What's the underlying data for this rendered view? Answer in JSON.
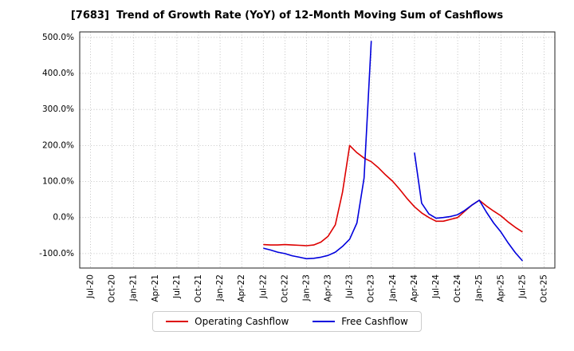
{
  "chart_data": {
    "type": "line",
    "title": "[7683]  Trend of Growth Rate (YoY) of 12-Month Moving Sum of Cashflows",
    "xlabel": "",
    "ylabel": "",
    "grid": true,
    "legend_position": "bottom",
    "x_unit": "months since Jul-20",
    "x_labels": [
      "Jul-20",
      "Oct-20",
      "Jan-21",
      "Apr-21",
      "Jul-21",
      "Oct-21",
      "Jan-22",
      "Apr-22",
      "Jul-22",
      "Oct-22",
      "Jan-23",
      "Apr-23",
      "Jul-23",
      "Oct-23",
      "Jan-24",
      "Apr-24",
      "Jul-24",
      "Oct-24",
      "Jan-25",
      "Apr-25",
      "Jul-25",
      "Oct-25"
    ],
    "x_ticks": [
      0,
      3,
      6,
      9,
      12,
      15,
      18,
      21,
      24,
      27,
      30,
      33,
      36,
      39,
      42,
      45,
      48,
      51,
      54,
      57,
      60,
      63
    ],
    "xlim": [
      -1.5,
      64.5
    ],
    "ylim": [
      -140,
      515
    ],
    "y_ticks": [
      -100,
      0,
      100,
      200,
      300,
      400,
      500
    ],
    "y_tick_suffix": "%",
    "series": [
      {
        "name": "Operating Cashflow",
        "color": "#dd0000",
        "x": [
          24,
          25,
          26,
          27,
          28,
          29,
          30,
          31,
          32,
          33,
          34,
          35,
          36,
          37,
          38,
          39,
          40,
          41,
          42,
          43,
          44,
          45,
          46,
          47,
          48,
          49,
          50,
          51,
          52,
          53,
          54,
          55,
          56,
          57,
          58,
          59,
          60
        ],
        "y": [
          -75,
          -76,
          -76,
          -75,
          -76,
          -77,
          -78,
          -76,
          -68,
          -52,
          -20,
          70,
          200,
          180,
          165,
          155,
          138,
          118,
          100,
          77,
          52,
          30,
          13,
          0,
          -10,
          -10,
          -5,
          0,
          18,
          35,
          48,
          32,
          18,
          5,
          -12,
          -27,
          -40
        ]
      },
      {
        "name": "Free Cashflow",
        "color": "#0000dd",
        "x": [
          24,
          25,
          26,
          27,
          28,
          29,
          30,
          31,
          32,
          33,
          34,
          35,
          36,
          37,
          38,
          39,
          40,
          41,
          42,
          43,
          44,
          45,
          46,
          47,
          48,
          49,
          50,
          51,
          52,
          53,
          54,
          55,
          56,
          57,
          58,
          59,
          60
        ],
        "y": [
          -85,
          -90,
          -96,
          -100,
          -106,
          -110,
          -114,
          -113,
          -110,
          -105,
          -96,
          -80,
          -60,
          -15,
          110,
          490,
          null,
          null,
          null,
          null,
          null,
          180,
          40,
          10,
          -2,
          0,
          3,
          8,
          20,
          35,
          48,
          15,
          -15,
          -40,
          -70,
          -97,
          -120
        ]
      }
    ]
  }
}
